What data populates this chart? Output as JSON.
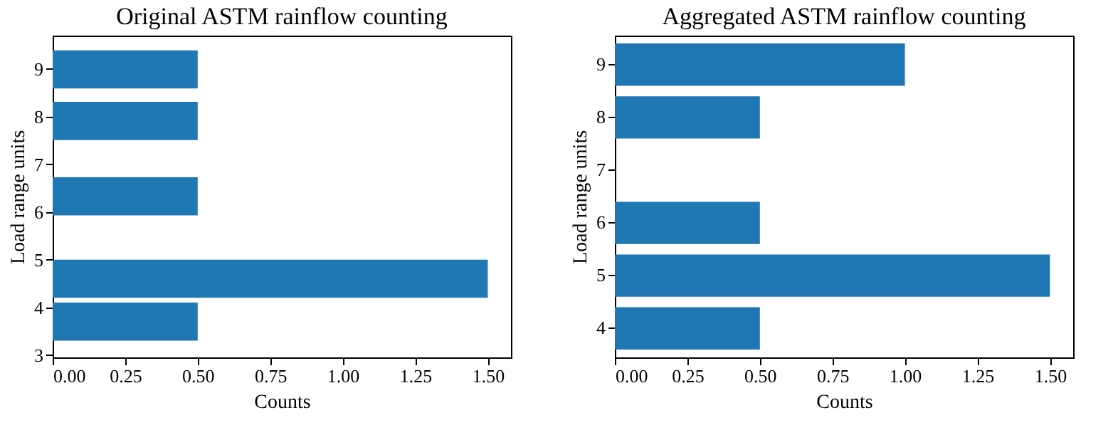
{
  "chart_data": [
    {
      "type": "bar",
      "orientation": "horizontal",
      "title": "Original ASTM rainflow counting",
      "xlabel": "Counts",
      "ylabel": "Load range units",
      "x": [
        3.7,
        4.6,
        6.33,
        7.91,
        8.99
      ],
      "series": [
        {
          "color": "#1f77b4",
          "values": [
            0.5,
            1.5,
            0.5,
            0.5,
            0.5
          ]
        }
      ],
      "xlim": [
        0,
        1.58
      ],
      "xticks": [
        {
          "value": 0,
          "label": "0.00"
        },
        {
          "value": 0.25,
          "label": "0.25"
        },
        {
          "value": 0.5,
          "label": "0.50"
        },
        {
          "value": 0.75,
          "label": "0.75"
        },
        {
          "value": 1,
          "label": "1.00"
        },
        {
          "value": 1.25,
          "label": "1.25"
        },
        {
          "value": 1.5,
          "label": "1.50"
        }
      ],
      "ylim": [
        2.95,
        9.7
      ],
      "yticks": [
        3,
        4,
        5,
        6,
        7,
        8,
        9
      ],
      "grid": false
    },
    {
      "type": "bar",
      "orientation": "horizontal",
      "title": "Aggregated ASTM rainflow counting",
      "xlabel": "Counts",
      "ylabel": "Load range units",
      "categories": [
        "9",
        "8",
        "7",
        "6",
        "5",
        "4"
      ],
      "series": [
        {
          "color": "#1f77b4",
          "values": [
            1.0,
            0.5,
            null,
            0.5,
            1.5,
            0.5
          ]
        }
      ],
      "xlim": [
        0,
        1.58
      ],
      "xticks": [
        {
          "value": 0,
          "label": "0.00"
        },
        {
          "value": 0.25,
          "label": "0.25"
        },
        {
          "value": 0.5,
          "label": "0.50"
        },
        {
          "value": 0.75,
          "label": "0.75"
        },
        {
          "value": 1,
          "label": "1.00"
        },
        {
          "value": 1.25,
          "label": "1.25"
        },
        {
          "value": 1.5,
          "label": "1.50"
        }
      ],
      "grid": false
    }
  ]
}
